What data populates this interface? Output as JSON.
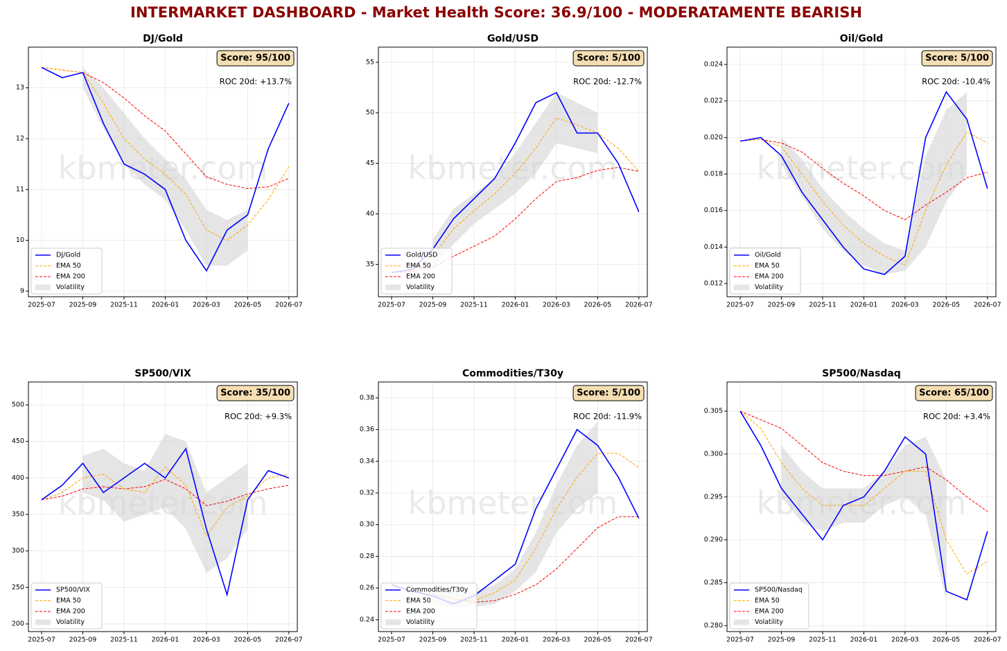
{
  "title": "INTERMARKET DASHBOARD - Market Health Score: 36.9/100 - MODERATAMENTE BEARISH",
  "watermark": "kbmeter.com",
  "chart_data": [
    {
      "type": "line",
      "title": "DJ/Gold",
      "score": "Score: 95/100",
      "roc": "ROC 20d: +13.7%",
      "grid": true,
      "legend": "lower left",
      "x": [
        "2025-07",
        "2025-08",
        "2025-09",
        "2025-10",
        "2025-11",
        "2025-12",
        "2026-01",
        "2026-02",
        "2026-03",
        "2026-04",
        "2026-05",
        "2026-06",
        "2026-07"
      ],
      "xticks": [
        "2025-07",
        "2025-09",
        "2025-11",
        "2026-01",
        "2026-03",
        "2026-05",
        "2026-07"
      ],
      "ylim": [
        8.89,
        13.8
      ],
      "yticks": [
        9,
        10,
        11,
        12,
        13
      ],
      "series": [
        {
          "name": "DJ/Gold",
          "color": "#0000ff",
          "style": "solid",
          "values": [
            13.4,
            13.2,
            13.3,
            12.3,
            11.5,
            11.3,
            11.0,
            10.0,
            9.4,
            10.2,
            10.5,
            11.8,
            12.7
          ]
        },
        {
          "name": "EMA 50",
          "color": "#ffa500",
          "style": "dashed",
          "values": [
            13.4,
            13.35,
            13.3,
            12.7,
            12.0,
            11.6,
            11.3,
            10.9,
            10.2,
            10.0,
            10.3,
            10.8,
            11.45
          ]
        },
        {
          "name": "EMA 200",
          "color": "#ff0000",
          "style": "dashed",
          "values": [
            13.4,
            13.35,
            13.3,
            13.1,
            12.8,
            12.45,
            12.15,
            11.7,
            11.25,
            11.1,
            11.02,
            11.05,
            11.22
          ]
        },
        {
          "name": "Volatility",
          "color": "#d3d3d3",
          "lower": [
            null,
            null,
            13.0,
            12.2,
            11.5,
            11.1,
            10.8,
            10.2,
            9.5,
            9.5,
            9.8,
            null,
            null
          ],
          "upper": [
            null,
            null,
            13.4,
            13.0,
            12.5,
            12.0,
            11.6,
            11.2,
            10.6,
            10.4,
            10.6,
            null,
            null
          ]
        }
      ]
    },
    {
      "type": "line",
      "title": "Gold/USD",
      "score": "Score: 5/100",
      "roc": "ROC 20d: -12.7%",
      "grid": true,
      "legend": "lower left",
      "x": [
        "2025-07",
        "2025-08",
        "2025-09",
        "2025-10",
        "2025-11",
        "2025-12",
        "2026-01",
        "2026-02",
        "2026-03",
        "2026-04",
        "2026-05",
        "2026-06",
        "2026-07"
      ],
      "xticks": [
        "2025-07",
        "2025-09",
        "2025-11",
        "2026-01",
        "2026-03",
        "2026-05",
        "2026-07"
      ],
      "ylim": [
        31.8,
        56.5
      ],
      "yticks": [
        35,
        40,
        45,
        50,
        55
      ],
      "series": [
        {
          "name": "Gold/USD",
          "color": "#0000ff",
          "style": "solid",
          "values": [
            34.2,
            34.5,
            36.5,
            39.5,
            41.5,
            43.5,
            47,
            51,
            52,
            48,
            48,
            45,
            40.2
          ]
        },
        {
          "name": "EMA 50",
          "color": "#ffa500",
          "style": "dashed",
          "values": [
            34.2,
            34.5,
            35.8,
            38.5,
            40.3,
            42.0,
            44,
            46.5,
            49.5,
            48.8,
            48,
            46.5,
            44.2
          ]
        },
        {
          "name": "EMA 200",
          "color": "#ff0000",
          "style": "dashed",
          "values": [
            34.2,
            34.3,
            34.7,
            35.8,
            36.8,
            37.8,
            39.5,
            41.5,
            43.2,
            43.6,
            44.3,
            44.6,
            44.2
          ]
        },
        {
          "name": "Volatility",
          "color": "#d3d3d3",
          "lower": [
            null,
            null,
            34.5,
            37,
            39,
            40.5,
            42,
            44,
            47,
            46.5,
            46,
            null,
            null
          ],
          "upper": [
            null,
            null,
            37.5,
            40.5,
            42,
            43.5,
            46,
            49,
            52,
            51,
            50,
            null,
            null
          ]
        }
      ]
    },
    {
      "type": "line",
      "title": "Oil/Gold",
      "score": "Score: 5/100",
      "roc": "ROC 20d: -10.4%",
      "grid": true,
      "legend": "lower left",
      "x": [
        "2025-07",
        "2025-08",
        "2025-09",
        "2025-10",
        "2025-11",
        "2025-12",
        "2026-01",
        "2026-02",
        "2026-03",
        "2026-04",
        "2026-05",
        "2026-06",
        "2026-07"
      ],
      "xticks": [
        "2025-07",
        "2025-09",
        "2025-11",
        "2026-01",
        "2026-03",
        "2026-05",
        "2026-07"
      ],
      "ylim": [
        0.01128,
        0.02495
      ],
      "yticks": [
        0.012,
        0.014,
        0.016,
        0.018,
        {
          "value": 0.02,
          "label": "0.020"
        },
        0.022,
        0.024
      ],
      "series": [
        {
          "name": "Oil/Gold",
          "color": "#0000ff",
          "style": "solid",
          "values": [
            0.0198,
            0.02,
            0.019,
            0.017,
            0.0155,
            0.014,
            0.0128,
            0.0125,
            0.0135,
            0.02,
            0.0225,
            0.021,
            0.0172
          ]
        },
        {
          "name": "EMA 50",
          "color": "#ffa500",
          "style": "dashed",
          "values": [
            0.0198,
            0.0199,
            0.0195,
            0.018,
            0.0165,
            0.0152,
            0.0142,
            0.0135,
            0.013,
            0.016,
            0.0185,
            0.0203,
            0.0197
          ]
        },
        {
          "name": "EMA 200",
          "color": "#ff0000",
          "style": "dashed",
          "values": [
            0.0198,
            0.0199,
            0.0197,
            0.0192,
            0.0183,
            0.0175,
            0.0168,
            0.016,
            0.0155,
            0.0163,
            0.017,
            0.0178,
            0.0181
          ]
        },
        {
          "name": "Volatility",
          "color": "#d3d3d3",
          "lower": [
            null,
            null,
            0.0185,
            0.0168,
            0.015,
            0.0138,
            0.013,
            0.0125,
            0.0127,
            0.014,
            0.0165,
            0.018,
            null
          ],
          "upper": [
            null,
            null,
            0.02,
            0.0188,
            0.0172,
            0.016,
            0.015,
            0.0142,
            0.0138,
            0.019,
            0.0215,
            0.0225,
            null
          ]
        }
      ]
    },
    {
      "type": "line",
      "title": "SP500/VIX",
      "score": "Score: 35/100",
      "roc": "ROC 20d: +9.3%",
      "grid": true,
      "legend": "lower left",
      "x": [
        "2025-07",
        "2025-08",
        "2025-09",
        "2025-10",
        "2025-11",
        "2025-12",
        "2026-01",
        "2026-02",
        "2026-03",
        "2026-04",
        "2026-05",
        "2026-06",
        "2026-07"
      ],
      "xticks": [
        "2025-07",
        "2025-09",
        "2025-11",
        "2026-01",
        "2026-03",
        "2026-05",
        "2026-07"
      ],
      "ylim": [
        189.5,
        531.4
      ],
      "yticks": [
        200,
        250,
        300,
        350,
        400,
        450,
        500
      ],
      "series": [
        {
          "name": "SP500/VIX",
          "color": "#0000ff",
          "style": "solid",
          "values": [
            370,
            390,
            420,
            380,
            400,
            420,
            400,
            440,
            330,
            240,
            370,
            410,
            400
          ]
        },
        {
          "name": "EMA 50",
          "color": "#ffa500",
          "style": "dashed",
          "values": [
            370,
            380,
            400,
            405,
            385,
            380,
            415,
            390,
            320,
            360,
            375,
            400,
            405
          ]
        },
        {
          "name": "EMA 200",
          "color": "#ff0000",
          "style": "dashed",
          "values": [
            370,
            375,
            385,
            388,
            385,
            388,
            398,
            385,
            362,
            368,
            378,
            385,
            390
          ]
        },
        {
          "name": "Volatility",
          "color": "#d3d3d3",
          "lower": [
            null,
            null,
            380,
            370,
            340,
            350,
            360,
            330,
            270,
            290,
            330,
            null,
            null
          ],
          "upper": [
            null,
            null,
            430,
            440,
            420,
            410,
            460,
            450,
            380,
            400,
            420,
            null,
            null
          ]
        }
      ]
    },
    {
      "type": "line",
      "title": "Commodities/T30y",
      "score": "Score: 5/100",
      "roc": "ROC 20d: -11.9%",
      "grid": true,
      "legend": "lower left",
      "x": [
        "2025-07",
        "2025-08",
        "2025-09",
        "2025-10",
        "2025-11",
        "2025-12",
        "2026-01",
        "2026-02",
        "2026-03",
        "2026-04",
        "2026-05",
        "2026-06",
        "2026-07"
      ],
      "xticks": [
        "2025-07",
        "2025-09",
        "2025-11",
        "2026-01",
        "2026-03",
        "2026-05",
        "2026-07"
      ],
      "ylim": [
        0.2325,
        0.39
      ],
      "yticks": [
        0.24,
        0.26,
        0.28,
        {
          "value": 0.3,
          "label": "0.30"
        },
        0.32,
        0.34,
        0.36,
        0.38
      ],
      "series": [
        {
          "name": "Commodities/T30y",
          "color": "#0000ff",
          "style": "solid",
          "values": [
            0.262,
            0.258,
            0.255,
            0.25,
            0.255,
            0.265,
            0.275,
            0.31,
            0.335,
            0.36,
            0.35,
            0.33,
            0.304
          ]
        },
        {
          "name": "EMA 50",
          "color": "#ffa500",
          "style": "dashed",
          "values": [
            0.262,
            0.258,
            0.256,
            0.253,
            0.252,
            0.257,
            0.265,
            0.285,
            0.31,
            0.33,
            0.345,
            0.345,
            0.336
          ]
        },
        {
          "name": "EMA 200",
          "color": "#ff0000",
          "style": "dashed",
          "values": [
            0.262,
            0.258,
            0.256,
            0.253,
            0.251,
            0.252,
            0.256,
            0.262,
            0.272,
            0.285,
            0.298,
            0.305,
            0.305
          ]
        },
        {
          "name": "Volatility",
          "color": "#d3d3d3",
          "lower": [
            null,
            null,
            0.25,
            0.248,
            0.248,
            0.25,
            0.258,
            0.27,
            0.295,
            0.31,
            0.32,
            null,
            null
          ],
          "upper": [
            null,
            null,
            0.262,
            0.258,
            0.258,
            0.262,
            0.272,
            0.295,
            0.325,
            0.35,
            0.365,
            null,
            null
          ]
        }
      ]
    },
    {
      "type": "line",
      "title": "SP500/Nasdaq",
      "score": "Score: 65/100",
      "roc": "ROC 20d: +3.4%",
      "grid": true,
      "legend": "lower left",
      "x": [
        "2025-07",
        "2025-08",
        "2025-09",
        "2025-10",
        "2025-11",
        "2025-12",
        "2026-01",
        "2026-02",
        "2026-03",
        "2026-04",
        "2026-05",
        "2026-06",
        "2026-07"
      ],
      "xticks": [
        "2025-07",
        "2025-09",
        "2025-11",
        "2026-01",
        "2026-03",
        "2026-05",
        "2026-07"
      ],
      "ylim": [
        0.2793,
        0.3084
      ],
      "yticks": [
        {
          "value": 0.28,
          "label": "0.280"
        },
        0.285,
        {
          "value": 0.29,
          "label": "0.290"
        },
        0.295,
        {
          "value": 0.3,
          "label": "0.300"
        },
        0.305
      ],
      "series": [
        {
          "name": "SP500/Nasdaq",
          "color": "#0000ff",
          "style": "solid",
          "values": [
            0.305,
            0.301,
            0.296,
            0.293,
            0.29,
            0.294,
            0.295,
            0.298,
            0.302,
            0.3,
            0.284,
            0.283,
            0.291
          ]
        },
        {
          "name": "EMA 50",
          "color": "#ffa500",
          "style": "dashed",
          "values": [
            0.305,
            0.303,
            0.299,
            0.296,
            0.294,
            0.294,
            0.294,
            0.296,
            0.298,
            0.298,
            0.29,
            0.286,
            0.2875
          ]
        },
        {
          "name": "EMA 200",
          "color": "#ff0000",
          "style": "dashed",
          "values": [
            0.305,
            0.304,
            0.303,
            0.301,
            0.299,
            0.298,
            0.2975,
            0.2975,
            0.298,
            0.2985,
            0.297,
            0.295,
            0.2933
          ]
        },
        {
          "name": "Volatility",
          "color": "#d3d3d3",
          "lower": [
            null,
            null,
            0.295,
            0.292,
            0.291,
            0.292,
            0.292,
            0.294,
            0.295,
            0.293,
            0.283,
            null,
            null
          ],
          "upper": [
            null,
            null,
            0.301,
            0.298,
            0.296,
            0.296,
            0.296,
            0.298,
            0.301,
            0.302,
            0.297,
            null,
            null
          ]
        }
      ]
    }
  ]
}
